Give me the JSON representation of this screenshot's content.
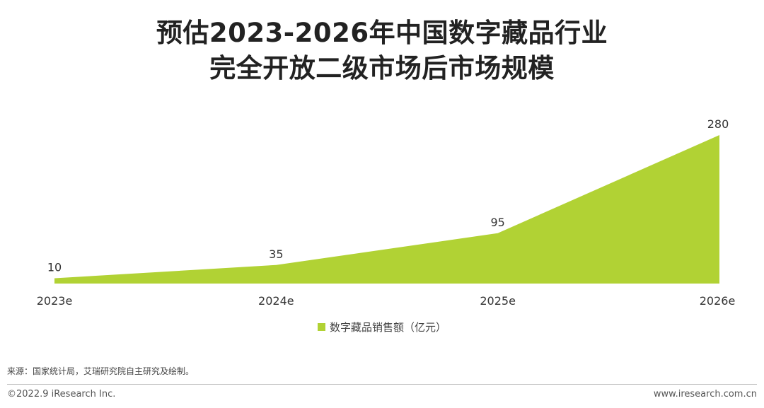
{
  "title": {
    "line1": "预估2023-2026年中国数字藏品行业",
    "line2": "完全开放二级市场后市场规模"
  },
  "colors": {
    "area_fill": "#b1d234",
    "text": "#333333"
  },
  "chart_data": {
    "type": "area",
    "title": "预估2023-2026年中国数字藏品行业完全开放二级市场后市场规模",
    "categories": [
      "2023e",
      "2024e",
      "2025e",
      "2026e"
    ],
    "series": [
      {
        "name": "数字藏品销售额（亿元）",
        "values": [
          10,
          35,
          95,
          280
        ],
        "color": "#b1d234"
      }
    ],
    "data_labels": [
      "10",
      "35",
      "95",
      "280"
    ],
    "ylim": [
      0,
      300
    ],
    "grid": false,
    "legend_position": "bottom-center",
    "xlabel": "",
    "ylabel": ""
  },
  "legend": {
    "label": "数字藏品销售额（亿元）"
  },
  "source": "来源：国家统计局，艾瑞研究院自主研究及绘制。",
  "footer": {
    "copyright": "©2022.9 iResearch Inc.",
    "website": "www.iresearch.com.cn"
  }
}
